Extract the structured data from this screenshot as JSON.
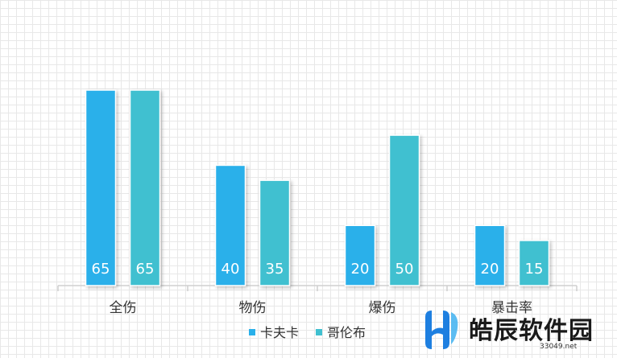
{
  "chart_data": {
    "type": "bar",
    "categories": [
      "全伤",
      "物伤",
      "爆伤",
      "暴击率"
    ],
    "series": [
      {
        "name": "卡夫卡",
        "values": [
          65,
          40,
          20,
          20
        ],
        "color": "#29b0ea"
      },
      {
        "name": "哥伦布",
        "values": [
          65,
          35,
          50,
          15
        ],
        "color": "#40c0d0"
      }
    ],
    "legend_position": "bottom",
    "grid": true
  },
  "watermark": {
    "title": "皓辰软件园",
    "url": "33049.net"
  }
}
